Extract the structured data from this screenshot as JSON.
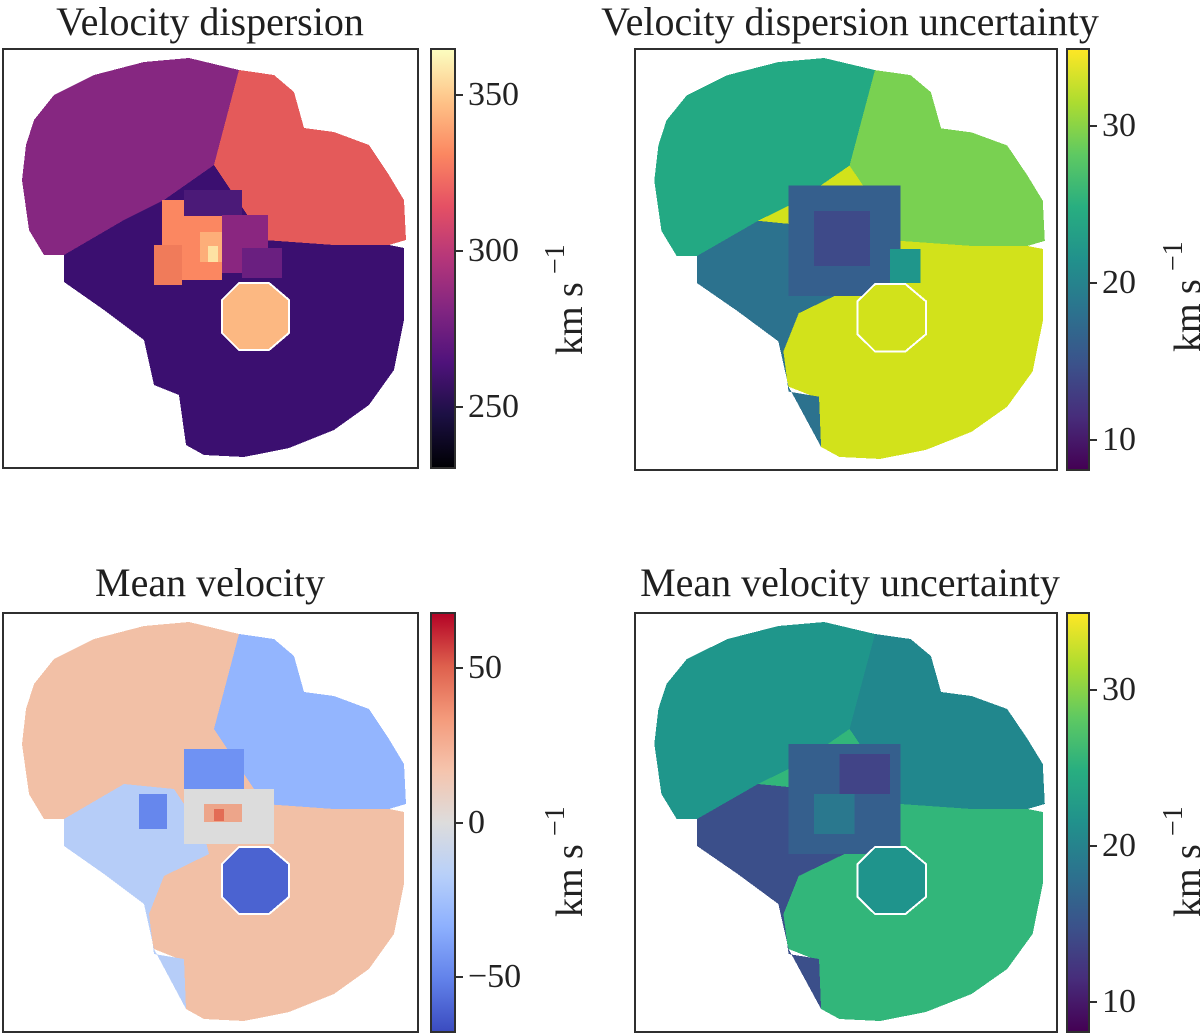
{
  "chart_data": [
    {
      "type": "heatmap",
      "title": "Velocity dispersion",
      "colormap": "magma",
      "colorbar": {
        "label": "km s",
        "label_exponent": "−1",
        "range": [
          230,
          365
        ],
        "ticks": [
          "250",
          "300",
          "350"
        ],
        "tick_values": [
          250,
          300,
          350
        ]
      },
      "regions": {
        "upper_left": 285,
        "upper_right": 318,
        "bottom": 262,
        "center": 336,
        "peak": 362,
        "masked_circle": 340
      },
      "colors": {
        "upper_left": "#862781",
        "upper_right": "#e45a5a",
        "bottom": "#3b0f70",
        "center": "#fb8761",
        "peak": "#fde2a3",
        "masked_circle": "#fcb882"
      }
    },
    {
      "type": "heatmap",
      "title": "Velocity dispersion uncertainty",
      "colormap": "viridis",
      "colorbar": {
        "label": "km s",
        "label_exponent": "−1",
        "range": [
          8,
          35
        ],
        "ticks": [
          "10",
          "20",
          "30"
        ],
        "tick_values": [
          10,
          20,
          30
        ]
      },
      "regions": {
        "upper_left": 24,
        "upper_right": 29,
        "bottom": 33,
        "left_lower": 18,
        "center": 16,
        "masked_circle": 33
      },
      "colors": {
        "upper_left": "#23a983",
        "upper_right": "#79d151",
        "bottom": "#d2e21b",
        "left_lower": "#2c728e",
        "center": "#355f8d",
        "masked_circle": "#d2e21b"
      }
    },
    {
      "type": "heatmap",
      "title": "Mean velocity",
      "colormap": "coolwarm",
      "colorbar": {
        "label": "km s",
        "label_exponent": "−1",
        "range": [
          -68,
          68
        ],
        "ticks": [
          "50",
          "0",
          "−50"
        ],
        "tick_values": [
          50,
          0,
          -50
        ]
      },
      "regions": {
        "upper_left": 17,
        "upper_right": -25,
        "bottom": 17,
        "left_lower": -12,
        "center": 0,
        "masked_circle": -52
      },
      "colors": {
        "upper_left": "#f2c0a6",
        "upper_right": "#93b5fe",
        "bottom": "#f2c0a6",
        "left_lower": "#b6cdf8",
        "center": "#dcdcdc",
        "masked_circle": "#4b63d1"
      }
    },
    {
      "type": "heatmap",
      "title": "Mean velocity uncertainty",
      "colormap": "viridis",
      "colorbar": {
        "label": "km s",
        "label_exponent": "−1",
        "range": [
          8,
          35
        ],
        "ticks": [
          "30",
          "20",
          "10"
        ],
        "tick_values": [
          30,
          20,
          10
        ]
      },
      "regions": {
        "upper_left": 21,
        "upper_right": 20,
        "bottom": 25,
        "left_lower": 15,
        "center": 17,
        "masked_circle": 21
      },
      "colors": {
        "upper_left": "#1f968b",
        "upper_right": "#21878d",
        "bottom": "#32b67a",
        "left_lower": "#3b4f8a",
        "center": "#355f8d",
        "masked_circle": "#1f948c"
      }
    }
  ]
}
